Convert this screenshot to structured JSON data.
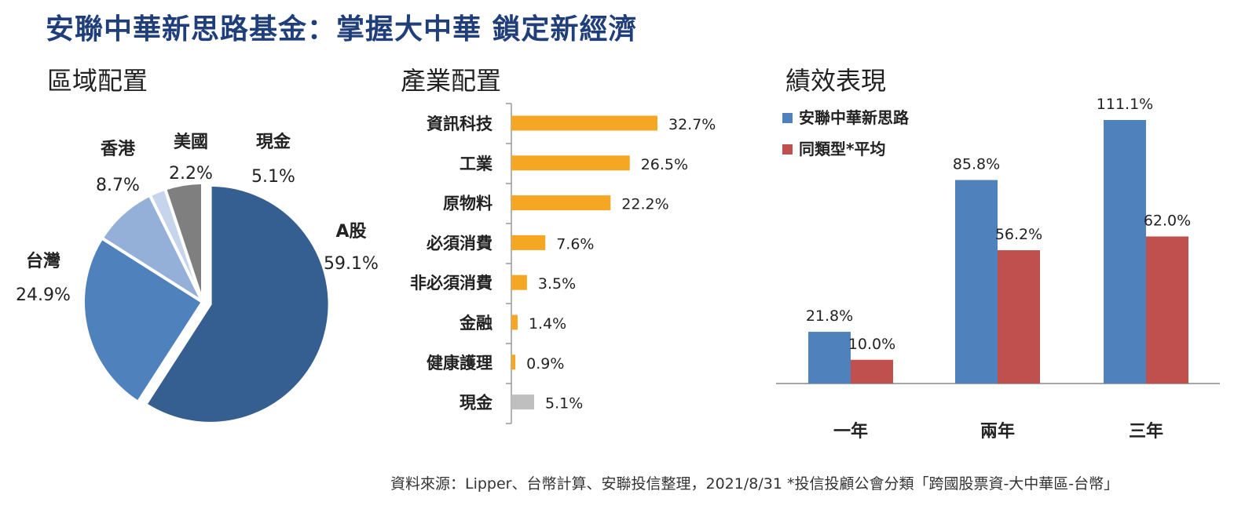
{
  "header": {
    "title": "安聯中華新思路基金：掌握大中華  鎖定新經濟"
  },
  "sections": {
    "region": "區域配置",
    "industry": "產業配置",
    "performance": "績效表現"
  },
  "colors": {
    "title": "#1f3e7a",
    "industry_bar": "#f5a623",
    "cash_bar": "#bfbfbf",
    "fund": "#4f81bd",
    "peer": "#c0504d"
  },
  "chart_data": [
    {
      "type": "pie",
      "title": "區域配置",
      "slices": [
        {
          "label": "A股",
          "value": 59.1,
          "value_label": "59.1%",
          "color": "#365f91"
        },
        {
          "label": "台灣",
          "value": 24.9,
          "value_label": "24.9%",
          "color": "#4f81bd"
        },
        {
          "label": "香港",
          "value": 8.7,
          "value_label": "8.7%",
          "color": "#95b0d8"
        },
        {
          "label": "美國",
          "value": 2.2,
          "value_label": "2.2%",
          "color": "#c6d5eb"
        },
        {
          "label": "現金",
          "value": 5.1,
          "value_label": "5.1%",
          "color": "#7f7f7f"
        }
      ]
    },
    {
      "type": "bar",
      "orientation": "horizontal",
      "title": "產業配置",
      "categories": [
        "資訊科技",
        "工業",
        "原物料",
        "必須消費",
        "非必須消費",
        "金融",
        "健康護理",
        "現金"
      ],
      "values": [
        32.7,
        26.5,
        22.2,
        7.6,
        3.5,
        1.4,
        0.9,
        5.1
      ],
      "value_labels": [
        "32.7%",
        "26.5%",
        "22.2%",
        "7.6%",
        "3.5%",
        "1.4%",
        "0.9%",
        "5.1%"
      ],
      "xlim": [
        0,
        40
      ]
    },
    {
      "type": "bar",
      "title": "績效表現",
      "categories": [
        "一年",
        "兩年",
        "三年"
      ],
      "series": [
        {
          "name": "安聯中華新思路",
          "values": [
            21.8,
            85.8,
            111.1
          ],
          "value_labels": [
            "21.8%",
            "85.8%",
            "111.1%"
          ],
          "color": "#4f81bd"
        },
        {
          "name": "同類型*平均",
          "values": [
            10.0,
            56.2,
            62.0
          ],
          "value_labels": [
            "10.0%",
            "56.2%",
            "62.0%"
          ],
          "color": "#c0504d"
        }
      ],
      "ylim": [
        0,
        120
      ],
      "legend": "top-left"
    }
  ],
  "footer": {
    "source": "資料來源：Lipper、台幣計算、安聯投信整理，2021/8/31  *投信投顧公會分類「跨國股票資-大中華區-台幣」"
  }
}
